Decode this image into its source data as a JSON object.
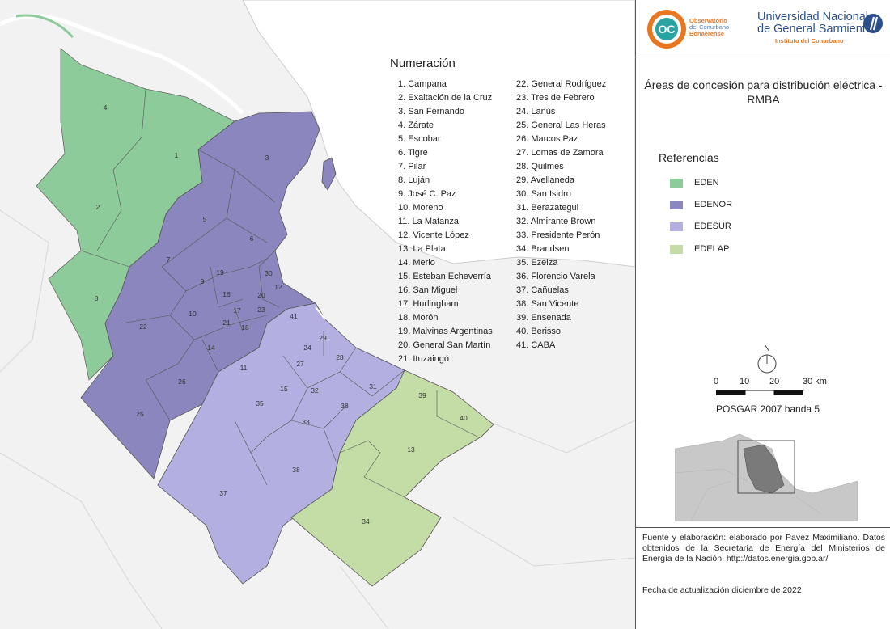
{
  "legend_heading": "Numeración",
  "numbering_col1": [
    "1. Campana",
    "2. Exaltación de la Cruz",
    "3. San Fernando",
    "4. Zárate",
    "5. Escobar",
    "6. Tigre",
    "7. Pilar",
    "8. Luján",
    "9. José C. Paz",
    "10. Moreno",
    "11. La Matanza",
    "12. Vicente López",
    "13. La Plata",
    "14. Merlo",
    "15. Esteban Echeverría",
    "16. San Miguel",
    "17. Hurlingham",
    "18. Morón",
    "19. Malvinas Argentinas",
    "20. General San Martín",
    "21. Ituzaingó"
  ],
  "numbering_col2": [
    "22. General Rodríguez",
    "23. Tres de Febrero",
    "24. Lanús",
    "25. General Las Heras",
    "26. Marcos Paz",
    "27. Lomas de Zamora",
    "28. Quilmes",
    "29. Avellaneda",
    "30. San Isidro",
    "31. Berazategui",
    "32. Almirante Brown",
    "33. Presidente Perón",
    "34. Brandsen",
    "35. Ezeiza",
    "36. Florencio Varela",
    "37. Cañuelas",
    "38. San Vicente",
    "39. Ensenada",
    "40. Berisso",
    "41. CABA"
  ],
  "map_labels": [
    "1",
    "2",
    "3",
    "4",
    "5",
    "6",
    "7",
    "8",
    "9",
    "10",
    "11",
    "12",
    "13",
    "14",
    "15",
    "16",
    "17",
    "18",
    "19",
    "20",
    "21",
    "22",
    "23",
    "24",
    "25",
    "26",
    "27",
    "28",
    "29",
    "30",
    "31",
    "32",
    "33",
    "34",
    "35",
    "36",
    "37",
    "38",
    "39",
    "40",
    "41"
  ],
  "header": {
    "obs_line1": "Observatorio",
    "obs_line2": "del Conurbano",
    "obs_line3": "Bonaerense",
    "obs_logo_text": "OC",
    "ungs_line1": "Universidad Nacional",
    "ungs_line2": "de General Sarmiento",
    "ungs_sub": "Instituto del Conurbano"
  },
  "title": "Áreas de concesión para distribución eléctrica - RMBA",
  "references_heading": "Referencias",
  "references": [
    {
      "label": "EDEN",
      "color": "#8ecb9b"
    },
    {
      "label": "EDENOR",
      "color": "#8b86bd"
    },
    {
      "label": "EDESUR",
      "color": "#b3afe0"
    },
    {
      "label": "EDELAP",
      "color": "#c4dca5"
    }
  ],
  "north_label": "N",
  "scale": {
    "ticks": [
      "0",
      "10",
      "20",
      "30 km"
    ]
  },
  "crs": "POSGAR 2007 banda 5",
  "source_text": "Fuente y elaboración: elaborado por Pavez Maximiliano. Datos obtenidos de la Secretaría de Energía del Ministerios de Energía de la Nación. http://datos.energia.gob.ar/",
  "update_text": "Fecha de actualización diciembre de 2022",
  "colors": {
    "eden": "#8ecb9b",
    "edenor": "#8b86bd",
    "edesur": "#b3afe0",
    "edelap": "#c4dca5",
    "water": "#ffffff",
    "land": "#f2f2f2"
  }
}
